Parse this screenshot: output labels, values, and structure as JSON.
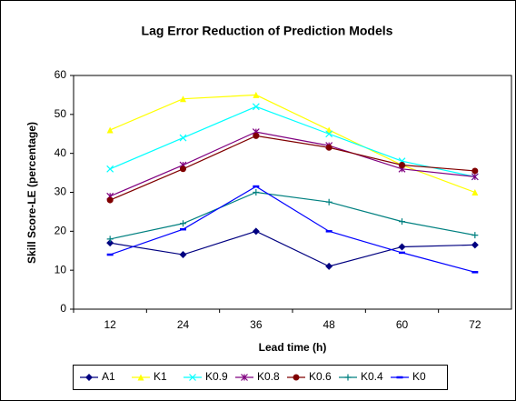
{
  "chart_data": {
    "type": "line",
    "title": "Lag Error Reduction of Prediction Models",
    "x_label": "Lead time (h)",
    "y_label": "Skill Score-LE (percentage)",
    "categories": [
      "12",
      "24",
      "36",
      "48",
      "60",
      "72"
    ],
    "series": [
      {
        "name": "A1",
        "color": "#000080",
        "marker": "diamond",
        "values": [
          17,
          14,
          20,
          11,
          16,
          16.5
        ]
      },
      {
        "name": "K1",
        "color": "#ffff00",
        "marker": "triangle",
        "values": [
          46,
          54,
          55,
          46,
          37,
          30
        ]
      },
      {
        "name": "K0.9",
        "color": "#00ffff",
        "marker": "x",
        "values": [
          36,
          44,
          52,
          45,
          38,
          34
        ]
      },
      {
        "name": "K0.8",
        "color": "#800080",
        "marker": "asterisk",
        "values": [
          29,
          37,
          45.5,
          42,
          36,
          34
        ]
      },
      {
        "name": "K0.6",
        "color": "#800000",
        "marker": "circle",
        "values": [
          28,
          36,
          44.5,
          41.5,
          37,
          35.5
        ]
      },
      {
        "name": "K0.4",
        "color": "#008080",
        "marker": "plus",
        "values": [
          18,
          22,
          30,
          27.5,
          22.5,
          19
        ]
      },
      {
        "name": "K0",
        "color": "#0000ff",
        "marker": "dash",
        "values": [
          14,
          20.5,
          31.5,
          20,
          14.5,
          9.5
        ]
      }
    ],
    "ylim": [
      0,
      60
    ],
    "yticks": [
      0,
      10,
      20,
      30,
      40,
      50,
      60
    ],
    "grid": false,
    "legend": "bottom"
  }
}
